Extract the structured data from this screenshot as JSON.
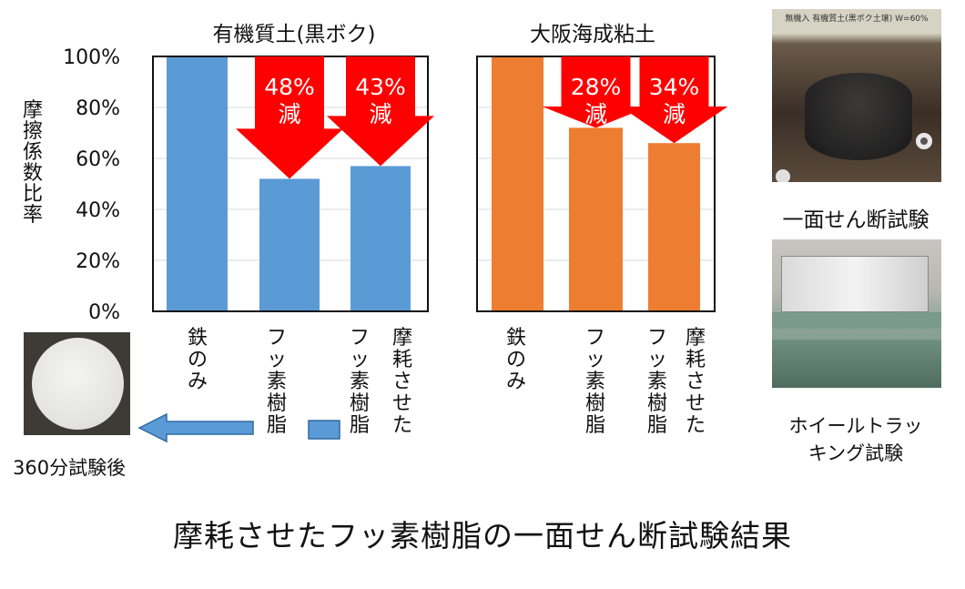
{
  "chart_data": [
    {
      "type": "bar",
      "title": "有機質土(黒ボク)",
      "ylabel": "摩擦係数比率",
      "ylim": [
        0,
        100
      ],
      "yticks": [
        "0%",
        "20%",
        "40%",
        "60%",
        "80%",
        "100%"
      ],
      "categories": [
        "鉄のみ",
        "フッ素樹脂",
        "フッ素樹脂 摩耗させた"
      ],
      "values": [
        100,
        52,
        57
      ],
      "color": "#5b9bd5",
      "annotations": [
        {
          "category_index": 1,
          "line1": "48%",
          "line2": "減"
        },
        {
          "category_index": 2,
          "line1": "43%",
          "line2": "減"
        }
      ]
    },
    {
      "type": "bar",
      "title": "大阪海成粘土",
      "ylim": [
        0,
        100
      ],
      "categories": [
        "鉄のみ",
        "フッ素樹脂",
        "フッ素樹脂 摩耗させた"
      ],
      "values": [
        100,
        72,
        66
      ],
      "color": "#ed7d31",
      "annotations": [
        {
          "category_index": 1,
          "line1": "28%",
          "line2": "減"
        },
        {
          "category_index": 2,
          "line1": "34%",
          "line2": "減"
        }
      ]
    }
  ],
  "labels": {
    "iron_only": "鉄のみ",
    "fluororesin": "フッ素樹脂",
    "worn": "摩耗させた"
  },
  "photos": {
    "specimen_caption": "360分試験後",
    "shear_caption": "一面せん断試験",
    "shear_photo_text": "無機入 有機質土(黒ボク土壌) W=60%",
    "wheel_caption_line1": "ホイールトラッ",
    "wheel_caption_line2": "キング試験"
  },
  "main_title": "摩耗させたフッ素樹脂の一面せん断試験結果",
  "colors": {
    "arrow_red": "#ff0000",
    "bar_blue": "#5b9bd5",
    "bar_orange": "#ed7d31"
  }
}
